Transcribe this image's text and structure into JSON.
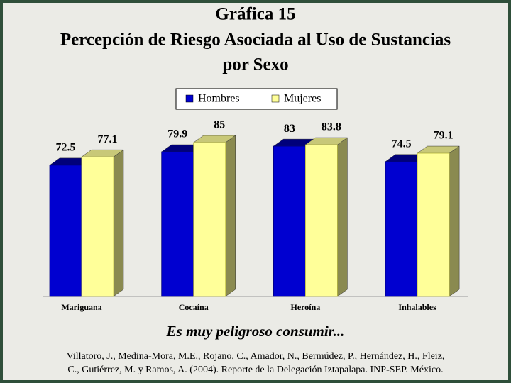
{
  "chart_data": {
    "type": "bar3d",
    "title": [
      "Gráfica 15",
      "Percepción de Riesgo Asociada al Uso de Sustancias",
      "por Sexo"
    ],
    "subtitle": "Es muy peligroso consumir...",
    "source": [
      "Villatoro, J., Medina-Mora, M.E., Rojano, C., Amador, N., Bermúdez, P., Hernández, H., Fleiz,",
      "C., Gutiérrez, M. y Ramos, A. (2004). Reporte de la Delegación Iztapalapa. INP-SEP. México."
    ],
    "categories": [
      "Mariguana",
      "Cocaína",
      "Heroína",
      "Inhalables"
    ],
    "series": [
      {
        "name": "Hombres",
        "color": "#0000d0",
        "values": [
          72.5,
          79.9,
          83,
          74.5
        ]
      },
      {
        "name": "Mujeres",
        "color": "#ffff99",
        "values": [
          77.1,
          85,
          83.8,
          79.1
        ]
      }
    ]
  }
}
